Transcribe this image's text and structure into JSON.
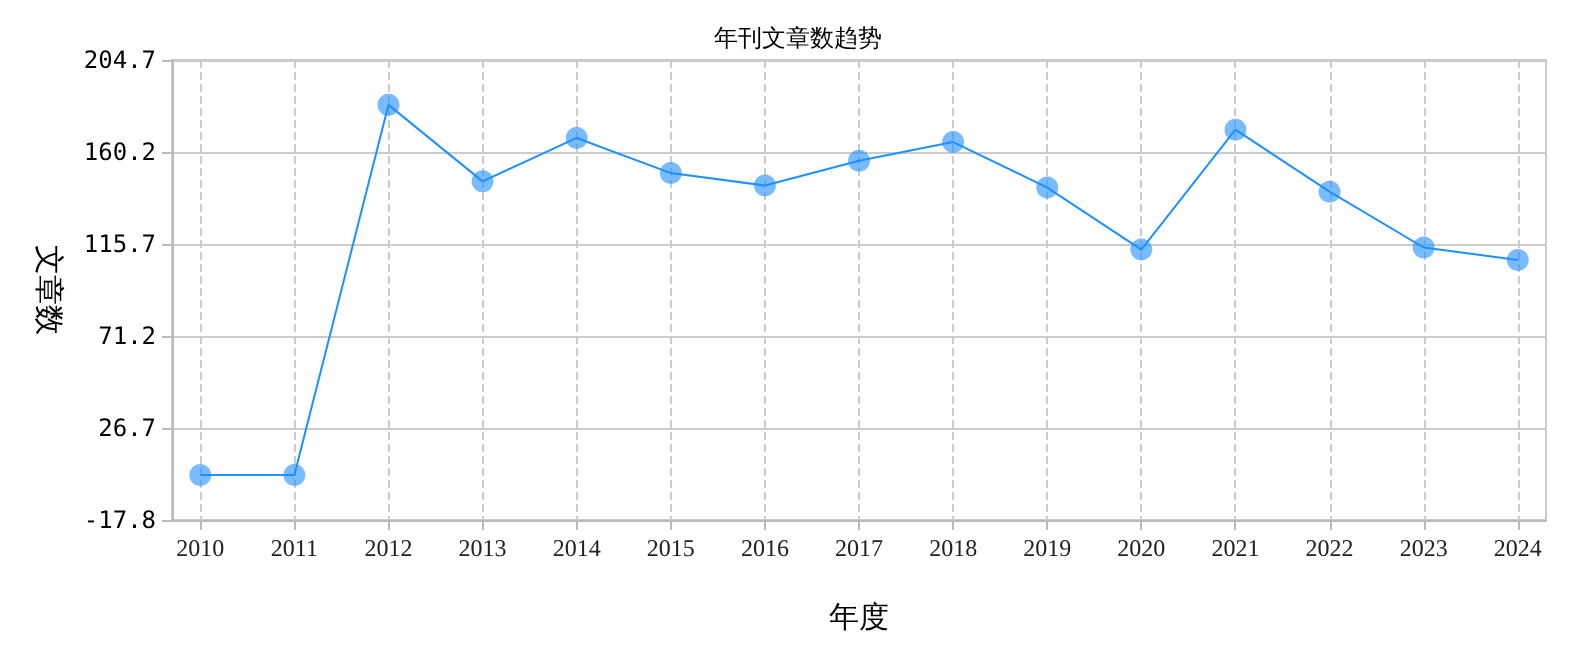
{
  "chart_data": {
    "type": "line",
    "title": "年刊文章数趋势",
    "xlabel": "年度",
    "ylabel": "文章数",
    "x": [
      2010,
      2011,
      2012,
      2013,
      2014,
      2015,
      2016,
      2017,
      2018,
      2019,
      2020,
      2021,
      2022,
      2023,
      2024
    ],
    "xlim": [
      2009.7,
      2024.3
    ],
    "xticks": [
      2010,
      2011,
      2012,
      2013,
      2014,
      2015,
      2016,
      2017,
      2018,
      2019,
      2020,
      2021,
      2022,
      2023,
      2024
    ],
    "series": [
      {
        "color": "#1e90ff",
        "values": [
          4,
          4,
          183,
          146,
          167,
          150,
          144,
          156,
          165,
          143,
          113,
          171,
          141,
          114,
          108
        ]
      }
    ],
    "ylim": [
      -17.8,
      204.7
    ],
    "yticks": [
      -17.8,
      26.7,
      71.2,
      115.7,
      160.2,
      204.7
    ],
    "grid": true,
    "marker": "circle",
    "line_style": "solid"
  }
}
